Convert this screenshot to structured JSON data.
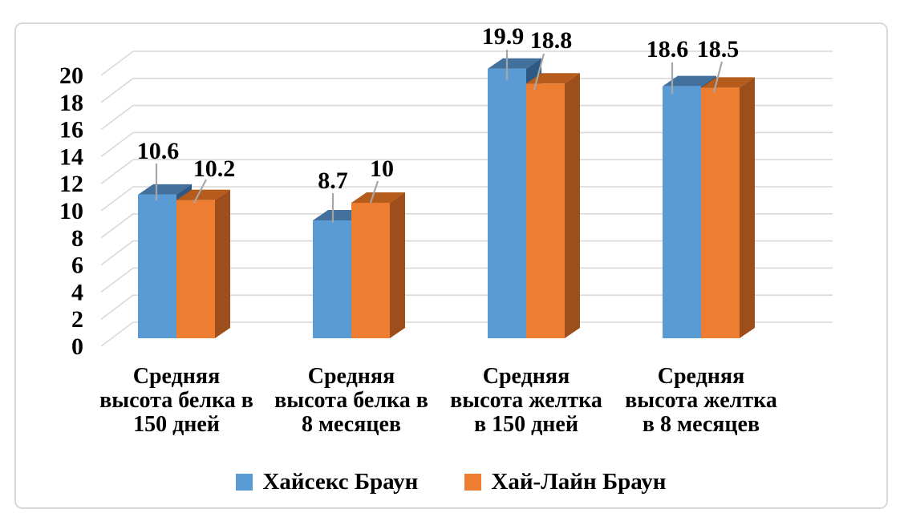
{
  "chart_data": {
    "type": "bar",
    "variant": "3d-clustered-column",
    "categories": [
      "Средняя\nвысота белка в\n150 дней",
      "Средняя\nвысота белка в\n8 месяцев",
      "Средняя\nвысота желтка\nв 150 дней",
      "Средняя\nвысота желтка\nв 8 месяцев"
    ],
    "series": [
      {
        "name": "Хайсекс Браун",
        "values": [
          10.6,
          8.7,
          19.9,
          18.6
        ],
        "color": "#5B9BD5",
        "top_color": "#41719C",
        "side_color": "#2E5984"
      },
      {
        "name": "Хай-Лайн Браун",
        "values": [
          10.2,
          10,
          18.8,
          18.5
        ],
        "color": "#ED7D31",
        "top_color": "#B55B1B",
        "side_color": "#9E4E1A"
      }
    ],
    "data_labels_shown": true,
    "ylim": [
      0,
      20
    ],
    "yticks": [
      0,
      2,
      4,
      6,
      8,
      10,
      12,
      14,
      16,
      18,
      20
    ],
    "grid": true,
    "legend_position": "bottom"
  },
  "styles": {
    "background": "#FFFFFF",
    "card_border_color": "#D9D9D9",
    "gridline_color": "#D9D9D9",
    "leader_line_color": "#A6A6A6",
    "text_color": "#000000"
  }
}
